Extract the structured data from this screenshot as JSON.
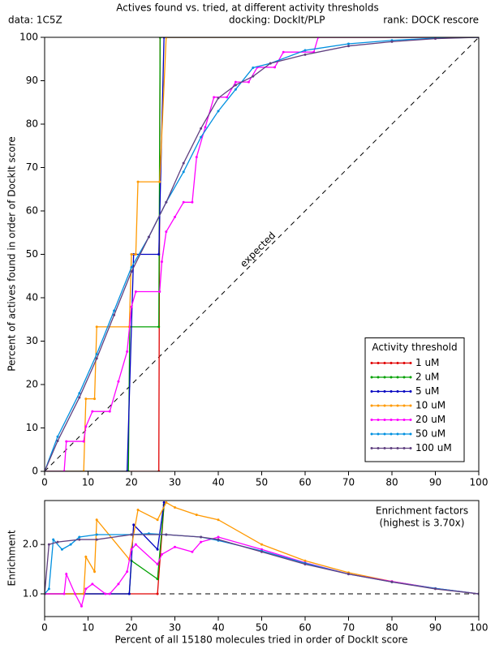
{
  "chart_data": [
    {
      "type": "line",
      "title": "Actives found vs. tried, at different activity thresholds",
      "subtitles": [
        "data: 1C5Z",
        "docking: DockIt/PLP",
        "rank: DOCK rescore"
      ],
      "y_label": "Percent of actives found in order of DockIt score",
      "annotation": "expected",
      "legend_title": "Activity threshold",
      "legend": "lower right",
      "xlim": [
        0,
        100
      ],
      "ylim": [
        0,
        100
      ],
      "xticks": [
        0,
        10,
        20,
        30,
        40,
        50,
        60,
        70,
        80,
        90,
        100
      ],
      "yticks": [
        0,
        10,
        20,
        30,
        40,
        50,
        60,
        70,
        80,
        90,
        100
      ],
      "series": [
        {
          "name": "1 uM",
          "color": "#e00000",
          "x": [
            0,
            26.3,
            26.6,
            100
          ],
          "values": [
            0,
            0,
            100,
            100
          ]
        },
        {
          "name": "2 uM",
          "color": "#00a000",
          "x": [
            0,
            19.3,
            19.6,
            26.3,
            26.6,
            100
          ],
          "values": [
            0,
            0,
            33.3,
            33.3,
            100,
            100
          ]
        },
        {
          "name": "5 uM",
          "color": "#0000c0",
          "x": [
            0,
            19,
            20.5,
            26.3,
            27.5,
            100
          ],
          "values": [
            0,
            0,
            50,
            50,
            100,
            100
          ]
        },
        {
          "name": "10 uM",
          "color": "#ff9900",
          "x": [
            0,
            9,
            9.5,
            11.5,
            12,
            19.5,
            20,
            21,
            21.5,
            26.5,
            28,
            100
          ],
          "values": [
            0,
            0,
            16.7,
            16.7,
            33.3,
            33.3,
            50,
            50,
            66.7,
            66.7,
            100,
            100
          ]
        },
        {
          "name": "20 uM",
          "color": "#ff00ff",
          "x": [
            0,
            4.5,
            5,
            9,
            9.5,
            11,
            15,
            17,
            19,
            20,
            21,
            26.5,
            27,
            28,
            30,
            32,
            34,
            35,
            37,
            39,
            42,
            44,
            47,
            49,
            53,
            55,
            62,
            63,
            100
          ],
          "values": [
            0,
            0,
            6.9,
            6.9,
            10.3,
            13.8,
            13.8,
            20.7,
            27.6,
            37.9,
            41.4,
            41.4,
            48.3,
            55.2,
            58.6,
            62,
            62,
            72.4,
            79.3,
            86.2,
            86.2,
            89.7,
            89.7,
            93.1,
            93.1,
            96.6,
            96.6,
            100,
            100
          ]
        },
        {
          "name": "50 uM",
          "color": "#0090e0",
          "x": [
            0,
            3,
            8,
            12,
            16,
            20,
            24,
            28,
            32,
            36,
            40,
            44,
            48,
            52,
            60,
            70,
            80,
            90,
            100
          ],
          "values": [
            0,
            8,
            18,
            27,
            37,
            47,
            54,
            62,
            69,
            77,
            83,
            88,
            93,
            94,
            97,
            98.5,
            99.3,
            99.8,
            100
          ]
        },
        {
          "name": "100 uM",
          "color": "#604080",
          "x": [
            0,
            3,
            8,
            12,
            16,
            20,
            24,
            28,
            32,
            36,
            40,
            44,
            48,
            52,
            60,
            70,
            80,
            90,
            100
          ],
          "values": [
            0,
            7,
            17,
            26,
            36,
            46,
            54,
            62,
            71,
            79,
            86,
            89,
            91,
            94,
            96,
            98,
            99,
            99.7,
            100
          ]
        }
      ]
    },
    {
      "type": "line",
      "y_label": "Enrichment",
      "x_label": "Percent of all 15180 molecules tried in order of DockIt score",
      "annotations": [
        "Enrichment factors",
        "(highest is 3.70x)"
      ],
      "baseline": 1,
      "xlim": [
        0,
        100
      ],
      "ylim": [
        0.54,
        2.89
      ],
      "xticks": [
        0,
        10,
        20,
        30,
        40,
        50,
        60,
        70,
        80,
        90,
        100
      ],
      "yticks": [
        {
          "value": 1,
          "label": "1.0"
        },
        {
          "value": 2,
          "label": "2.0"
        }
      ],
      "series": [
        {
          "color": "#e00000",
          "x": [
            0,
            26,
            27.5
          ],
          "values": [
            1,
            1,
            2.8
          ]
        },
        {
          "color": "#00a000",
          "x": [
            0,
            19.5,
            20,
            26,
            27.5
          ],
          "values": [
            1,
            1,
            1.67,
            1.3,
            2.8
          ]
        },
        {
          "color": "#0000c0",
          "x": [
            0,
            19.5,
            20.5,
            26,
            27.5
          ],
          "values": [
            1,
            1,
            2.4,
            1.9,
            2.85
          ]
        },
        {
          "color": "#ff9900",
          "x": [
            0,
            9,
            9.5,
            11.5,
            12,
            19.5,
            21.5,
            26,
            28,
            30,
            35,
            40,
            50,
            60,
            70,
            80,
            90,
            100
          ],
          "values": [
            1,
            1,
            1.75,
            1.45,
            2.5,
            1.7,
            2.7,
            2.5,
            2.85,
            2.75,
            2.6,
            2.5,
            2,
            1.67,
            1.43,
            1.25,
            1.11,
            1
          ]
        },
        {
          "color": "#ff00ff",
          "x": [
            0,
            4.5,
            5,
            7,
            8.5,
            9.5,
            11,
            14,
            15,
            17,
            19,
            20,
            21,
            26,
            27,
            30,
            34,
            36,
            40,
            50,
            60,
            70,
            80,
            90,
            100
          ],
          "values": [
            1,
            1,
            1.4,
            1,
            0.75,
            1.1,
            1.2,
            1,
            1,
            1.2,
            1.45,
            1.9,
            2,
            1.6,
            1.8,
            1.95,
            1.85,
            2.05,
            2.15,
            1.9,
            1.63,
            1.4,
            1.25,
            1.11,
            1
          ]
        },
        {
          "color": "#0090e0",
          "x": [
            0,
            1,
            2,
            4,
            6,
            8,
            12,
            20,
            24,
            28,
            36,
            40,
            50,
            60,
            70,
            80,
            90,
            100
          ],
          "values": [
            1,
            1.1,
            2.1,
            1.9,
            2,
            2.15,
            2.2,
            2.2,
            2.22,
            2.2,
            2.15,
            2.08,
            1.87,
            1.62,
            1.4,
            1.24,
            1.11,
            1
          ]
        },
        {
          "color": "#604080",
          "x": [
            0,
            1,
            3,
            8,
            12,
            20,
            28,
            36,
            40,
            50,
            60,
            70,
            80,
            90,
            100
          ],
          "values": [
            1,
            2,
            2.05,
            2.1,
            2.1,
            2.2,
            2.2,
            2.15,
            2.1,
            1.85,
            1.6,
            1.4,
            1.24,
            1.1,
            1
          ]
        }
      ]
    }
  ]
}
